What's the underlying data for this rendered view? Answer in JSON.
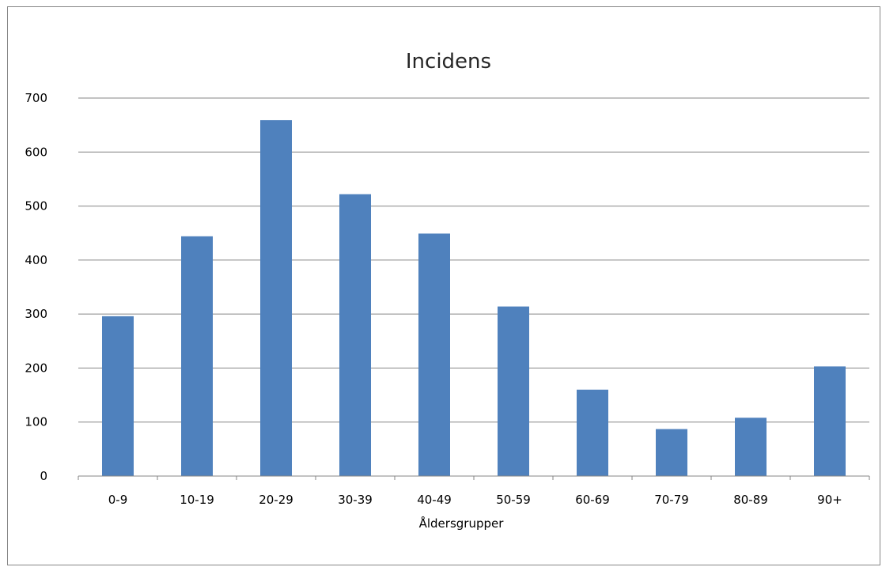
{
  "chart_data": {
    "type": "bar",
    "title": "Incidens",
    "xlabel": "Åldersgrupper",
    "ylabel": "",
    "categories": [
      "0-9",
      "10-19",
      "20-29",
      "30-39",
      "40-49",
      "50-59",
      "60-69",
      "70-79",
      "80-89",
      "90+"
    ],
    "values": [
      296,
      444,
      659,
      522,
      449,
      314,
      160,
      87,
      108,
      203
    ],
    "ylim": [
      0,
      700
    ],
    "yticks": [
      0,
      100,
      200,
      300,
      400,
      500,
      600,
      700
    ],
    "grid": true,
    "legend": "none",
    "bar_color": "#4F81BD",
    "gridline_color": "#868686"
  }
}
